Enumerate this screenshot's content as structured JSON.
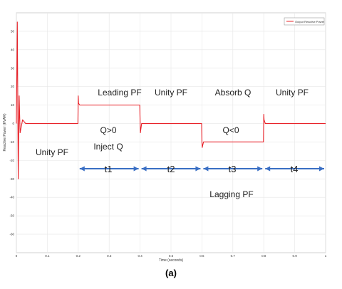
{
  "chart_data": {
    "type": "line",
    "xlabel": "Time (seconds)",
    "ylabel": "Reactive Power (KVAR)",
    "xlim": [
      0,
      1
    ],
    "ylim": [
      -70,
      60
    ],
    "xticks": [
      "0",
      "0.1",
      "0.2",
      "0.3",
      "0.4",
      "0.5",
      "0.6",
      "0.7",
      "0.8",
      "0.9",
      "1"
    ],
    "yticks": [
      "50",
      "40",
      "30",
      "20",
      "10",
      "0",
      "-10",
      "-20",
      "-30",
      "-40",
      "-50",
      "-60"
    ],
    "grid": true,
    "legend_position": "top-right",
    "series": [
      {
        "name": "Output Reactive Power",
        "color": "#e8232a",
        "x": [
          0,
          0.003,
          0.006,
          0.009,
          0.012,
          0.02,
          0.03,
          0.05,
          0.1,
          0.15,
          0.199,
          0.2,
          0.201,
          0.205,
          0.25,
          0.3,
          0.35,
          0.399,
          0.4,
          0.401,
          0.405,
          0.45,
          0.5,
          0.55,
          0.599,
          0.6,
          0.601,
          0.605,
          0.65,
          0.7,
          0.75,
          0.799,
          0.8,
          0.801,
          0.805,
          0.85,
          0.9,
          0.95,
          1.0
        ],
        "y": [
          0,
          55,
          -30,
          15,
          -5,
          2,
          0,
          0,
          0,
          0,
          0,
          15,
          11,
          10,
          10,
          10,
          10,
          10,
          2,
          -5,
          0,
          0,
          0,
          0,
          0,
          -10,
          -13,
          -10,
          -10,
          -10,
          -10,
          -10,
          5,
          2,
          0,
          0,
          0,
          0,
          0
        ]
      }
    ],
    "annotations": {
      "leading": "Leading PF",
      "unity_top1": "Unity PF",
      "absorb": "Absorb Q",
      "unity_top2": "Unity PF",
      "q_pos": "Q>0",
      "q_neg": "Q<0",
      "unity_left": "Unity PF",
      "inject": "Inject Q",
      "t1": "t1",
      "t2": "t2",
      "t3": "t3",
      "t4": "t4",
      "lagging": "Lagging PF"
    },
    "arrow_color": "#3a6fc4"
  },
  "caption": "(a)"
}
